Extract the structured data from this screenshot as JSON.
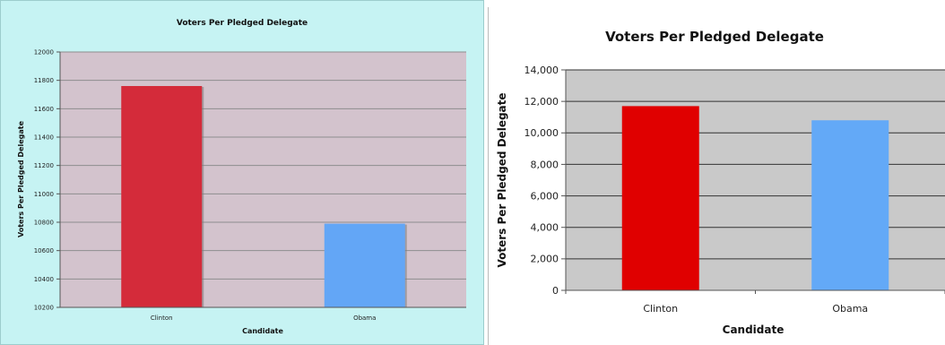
{
  "chart_data": [
    {
      "type": "bar",
      "title": "Voters Per Pledged Delegate",
      "xlabel": "Candidate",
      "ylabel": "Voters Per Pledged Delegate",
      "categories": [
        "Clinton",
        "Obama"
      ],
      "values": [
        11760,
        10790
      ],
      "colors": [
        "#d42b3a",
        "#63a6f6"
      ],
      "ylim": [
        10200,
        12000
      ],
      "yticks": [
        10200,
        10400,
        10600,
        10800,
        11000,
        11200,
        11400,
        11600,
        11800,
        12000
      ],
      "ytick_labels": [
        "10200",
        "10400",
        "10600",
        "10800",
        "11000",
        "11200",
        "11400",
        "11600",
        "11800",
        "12000"
      ],
      "grid": true,
      "background": "#c6f3f3",
      "plot_background": "#d3c3cd"
    },
    {
      "type": "bar",
      "title": "Voters Per Pledged Delegate",
      "xlabel": "Candidate",
      "ylabel": "Voters Per Pledged Delegate",
      "categories": [
        "Clinton",
        "Obama"
      ],
      "values": [
        11700,
        10800
      ],
      "colors": [
        "#e00000",
        "#63a9f7"
      ],
      "ylim": [
        0,
        14000
      ],
      "yticks": [
        0,
        2000,
        4000,
        6000,
        8000,
        10000,
        12000,
        14000
      ],
      "ytick_labels": [
        "0",
        "2,000",
        "4,000",
        "6,000",
        "8,000",
        "10,000",
        "12,000",
        "14,000"
      ],
      "grid": true,
      "background": "#ffffff",
      "plot_background": "#c9c9c9"
    }
  ]
}
